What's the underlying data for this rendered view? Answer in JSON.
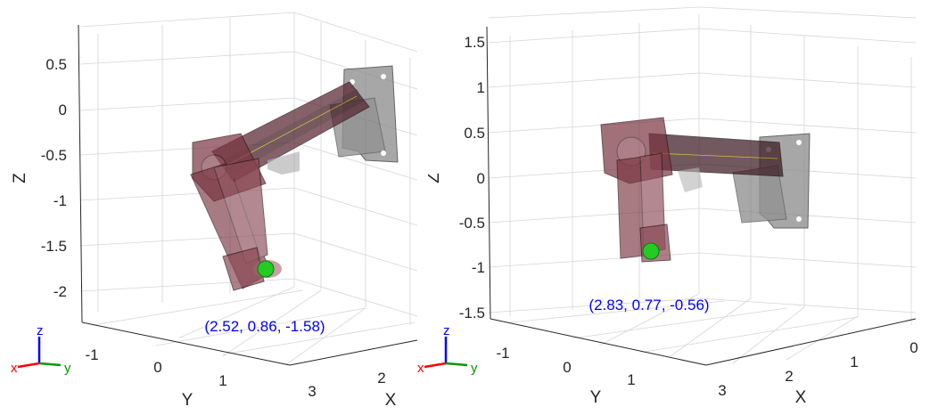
{
  "colors": {
    "axis_text": "#262626",
    "grid": "#d6d6d6",
    "annotation": "#0000ff",
    "link_fill": "#7a3540",
    "base_fill": "#8a8a8a",
    "end_effector": "#22cc22",
    "triad_x": "#ff0000",
    "triad_y": "#009900",
    "triad_z": "#0000ff"
  },
  "panels": [
    {
      "z_ticks": [
        "0.5",
        "0",
        "-0.5",
        "-1",
        "-1.5",
        "-2"
      ],
      "y_ticks": [
        "-1",
        "0",
        "1"
      ],
      "x_ticks": [
        "2",
        "3"
      ],
      "z_label": "Z",
      "y_label": "Y",
      "x_label": "X",
      "annotation": "(2.52, 0.86, -1.58)",
      "triad": {
        "x": "x",
        "y": "y",
        "z": "z"
      }
    },
    {
      "z_ticks": [
        "1.5",
        "1",
        "0.5",
        "0",
        "-0.5",
        "-1",
        "-1.5"
      ],
      "y_ticks": [
        "-1",
        "0",
        "1"
      ],
      "x_ticks": [
        "0",
        "1",
        "2",
        "3"
      ],
      "z_label": "Z",
      "y_label": "Y",
      "x_label": "X",
      "annotation": "(2.83, 0.77, -0.56)",
      "triad": {
        "x": "x",
        "y": "y",
        "z": "z"
      }
    }
  ]
}
